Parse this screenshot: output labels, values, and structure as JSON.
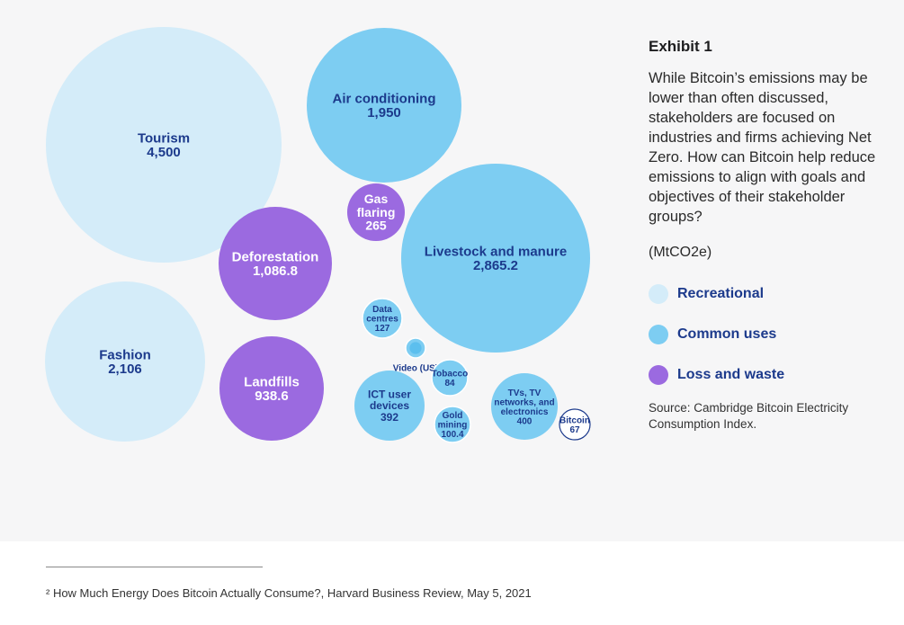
{
  "exhibit": {
    "title": "Exhibit 1",
    "description": "While Bitcoin’s emissions may be lower than often discussed, stakeholders are focused on industries and firms achieving Net Zero. How can Bitcoin help reduce emissions to align with goals and objectives of their stakeholder groups?",
    "unit": "(MtCO2e)",
    "source": "Source: Cambridge Bitcoin Electricity Consumption Index."
  },
  "legend": [
    {
      "label": "Recreational",
      "color": "#d4ecf9"
    },
    {
      "label": "Common uses",
      "color": "#7dcdf2"
    },
    {
      "label": "Loss and waste",
      "color": "#9b6ae0"
    }
  ],
  "footnote": "² How Much Energy Does Bitcoin Actually Consume?, Harvard Business Review, May 5, 2021",
  "chart_data": {
    "type": "bubble",
    "unit": "MtCO2e",
    "series": [
      {
        "name": "Tourism",
        "label_lines": [
          "Tourism"
        ],
        "value_label": "4,500",
        "value": 4500,
        "group": "Recreational"
      },
      {
        "name": "Fashion",
        "label_lines": [
          "Fashion"
        ],
        "value_label": "2,106",
        "value": 2106,
        "group": "Recreational"
      },
      {
        "name": "Air conditioning",
        "label_lines": [
          "Air conditioning"
        ],
        "value_label": "1,950",
        "value": 1950,
        "group": "Common uses"
      },
      {
        "name": "Livestock and manure",
        "label_lines": [
          "Livestock and manure"
        ],
        "value_label": "2,865.2",
        "value": 2865.2,
        "group": "Common uses"
      },
      {
        "name": "Deforestation",
        "label_lines": [
          "Deforestation"
        ],
        "value_label": "1,086.8",
        "value": 1086.8,
        "group": "Loss and waste"
      },
      {
        "name": "Landfills",
        "label_lines": [
          "Landfills"
        ],
        "value_label": "938.6",
        "value": 938.6,
        "group": "Loss and waste"
      },
      {
        "name": "Gas flaring",
        "label_lines": [
          "Gas",
          "flaring"
        ],
        "value_label": "265",
        "value": 265,
        "group": "Loss and waste"
      },
      {
        "name": "Data centres",
        "label_lines": [
          "Data",
          "centres"
        ],
        "value_label": "127",
        "value": 127,
        "group": "Common uses"
      },
      {
        "name": "Video (US)",
        "label_lines": [
          "Video (US)"
        ],
        "value_label": "",
        "value": null,
        "group": "Common uses"
      },
      {
        "name": "Tobacco",
        "label_lines": [
          "Tobacco"
        ],
        "value_label": "84",
        "value": 84,
        "group": "Common uses"
      },
      {
        "name": "ICT user devices",
        "label_lines": [
          "ICT user",
          "devices"
        ],
        "value_label": "392",
        "value": 392,
        "group": "Common uses"
      },
      {
        "name": "Gold mining",
        "label_lines": [
          "Gold",
          "mining"
        ],
        "value_label": "100.4",
        "value": 100.4,
        "group": "Common uses"
      },
      {
        "name": "TVs, TV networks, and electronics",
        "label_lines": [
          "TVs, TV",
          "networks, and",
          "electronics"
        ],
        "value_label": "400",
        "value": 400,
        "group": "Common uses"
      },
      {
        "name": "Bitcoin",
        "label_lines": [
          "Bitcoin"
        ],
        "value_label": "67",
        "value": 67,
        "group": "Bitcoin",
        "color": "#ffffff",
        "stroke": "#1c3a8c"
      }
    ]
  }
}
